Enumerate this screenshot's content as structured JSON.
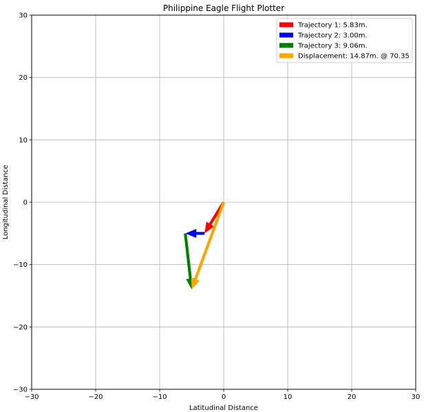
{
  "chart_data": {
    "type": "quiver",
    "title": "Philippine Eagle Flight Plotter",
    "xlabel": "Latitudinal Distance",
    "ylabel": "Longitudinal Distance",
    "xlim": [
      -30,
      30
    ],
    "ylim": [
      -30,
      30
    ],
    "xticks": [
      -30,
      -20,
      -10,
      0,
      10,
      20,
      30
    ],
    "yticks": [
      -30,
      -20,
      -10,
      0,
      10,
      20,
      30
    ],
    "xtick_labels": [
      "−30",
      "−20",
      "−10",
      "0",
      "10",
      "20",
      "30"
    ],
    "ytick_labels": [
      "−30",
      "−20",
      "−10",
      "0",
      "10",
      "20",
      "30"
    ],
    "grid": true,
    "legend_position": "upper right",
    "series": [
      {
        "name": "Trajectory 1: 5.83m.",
        "color": "#ff0000",
        "start": [
          0,
          0
        ],
        "end": [
          -3,
          -5
        ]
      },
      {
        "name": "Trajectory 2: 3.00m.",
        "color": "#0000ff",
        "start": [
          -3,
          -5
        ],
        "end": [
          -6,
          -5
        ]
      },
      {
        "name": "Trajectory 3: 9.06m.",
        "color": "#008000",
        "start": [
          -6,
          -5
        ],
        "end": [
          -5,
          -14
        ]
      },
      {
        "name": "Displacement: 14.87m. @ 70.35",
        "color": "#ffa500",
        "start": [
          0,
          0
        ],
        "end": [
          -5,
          -14
        ]
      }
    ]
  }
}
